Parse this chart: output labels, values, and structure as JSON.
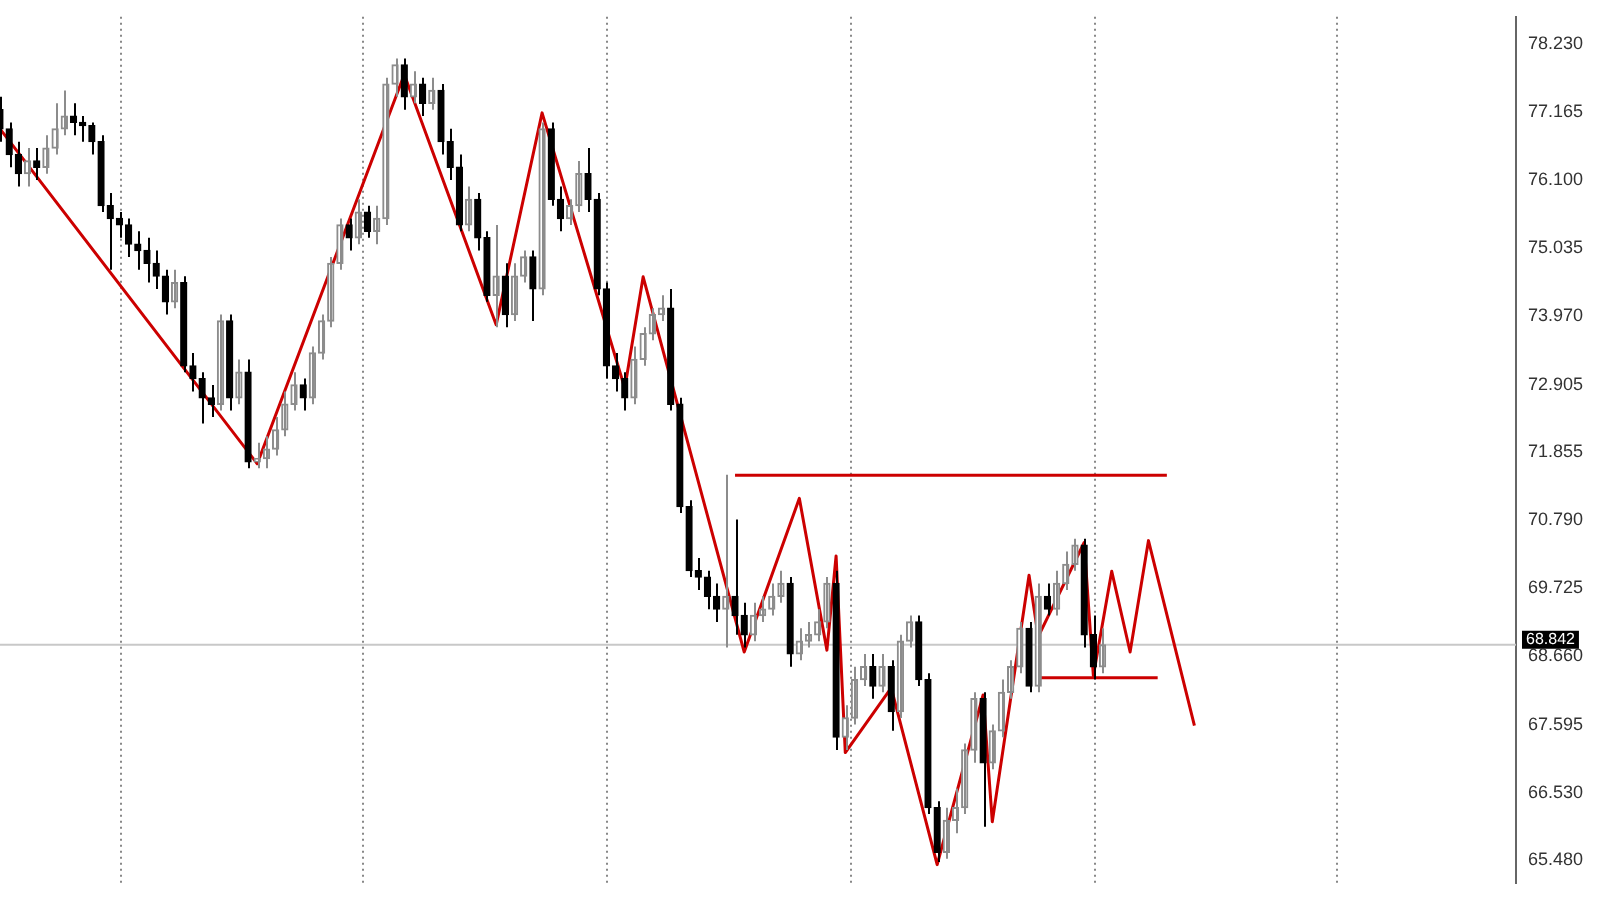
{
  "chart_data": {
    "type": "candlestick",
    "categories": [
      null,
      null,
      null,
      null,
      null,
      null,
      null,
      null,
      null,
      null,
      null,
      null,
      null,
      null,
      null,
      null,
      null,
      null,
      null,
      null,
      null,
      null,
      null,
      null,
      null,
      null,
      null,
      null,
      null,
      null,
      null,
      null,
      null,
      null,
      null,
      null,
      null,
      null,
      null,
      null,
      null,
      null,
      null,
      null,
      null,
      null,
      null,
      null,
      null,
      null,
      null,
      null,
      null,
      null,
      null,
      null,
      null,
      null,
      null,
      null,
      null,
      null,
      null,
      null,
      null,
      null,
      null,
      null,
      null,
      null,
      null,
      null,
      null,
      null,
      null,
      null,
      null,
      null,
      null,
      null,
      null,
      null,
      null,
      null,
      null,
      null,
      null,
      null,
      null,
      null,
      null,
      null,
      null,
      null,
      null,
      null,
      null,
      null,
      null,
      null,
      null,
      null,
      null,
      null,
      null,
      null,
      null,
      null,
      null,
      null,
      null,
      null,
      null,
      null,
      null,
      null,
      null,
      null,
      null,
      null,
      null,
      null,
      null,
      null,
      null,
      null,
      null,
      null,
      null,
      null,
      null,
      null,
      null,
      null,
      null,
      null,
      null,
      null,
      null,
      null,
      null,
      null,
      null,
      null,
      null,
      null,
      null,
      null,
      null,
      null,
      null,
      null,
      null,
      null,
      null,
      null,
      null,
      null,
      null,
      null,
      null,
      null,
      null,
      null,
      null,
      null
    ],
    "ohlc": [
      [
        77.2,
        77.4,
        76.7,
        76.9
      ],
      [
        76.9,
        77.0,
        76.3,
        76.5
      ],
      [
        76.5,
        76.7,
        76.0,
        76.2
      ],
      [
        76.2,
        76.6,
        76.0,
        76.4
      ],
      [
        76.4,
        76.6,
        76.1,
        76.3
      ],
      [
        76.3,
        76.8,
        76.2,
        76.6
      ],
      [
        76.6,
        77.3,
        76.5,
        76.9
      ],
      [
        76.9,
        77.5,
        76.8,
        77.1
      ],
      [
        77.1,
        77.3,
        76.8,
        77.0
      ],
      [
        77.0,
        77.1,
        76.7,
        76.95
      ],
      [
        76.95,
        77.0,
        76.5,
        76.7
      ],
      [
        76.7,
        76.8,
        75.6,
        75.7
      ],
      [
        75.7,
        75.9,
        74.7,
        75.5
      ],
      [
        75.5,
        75.6,
        75.2,
        75.4
      ],
      [
        75.4,
        75.5,
        74.9,
        75.1
      ],
      [
        75.1,
        75.3,
        74.7,
        75.0
      ],
      [
        75.0,
        75.2,
        74.5,
        74.8
      ],
      [
        74.8,
        75.0,
        74.4,
        74.6
      ],
      [
        74.6,
        74.7,
        74.0,
        74.2
      ],
      [
        74.2,
        74.7,
        74.1,
        74.5
      ],
      [
        74.5,
        74.6,
        73.1,
        73.2
      ],
      [
        73.2,
        73.4,
        72.8,
        73.0
      ],
      [
        73.0,
        73.1,
        72.3,
        72.7
      ],
      [
        72.7,
        72.9,
        72.4,
        72.6
      ],
      [
        72.6,
        74.0,
        72.5,
        73.9
      ],
      [
        73.9,
        74.0,
        72.5,
        72.7
      ],
      [
        72.7,
        73.3,
        72.6,
        73.1
      ],
      [
        73.1,
        73.3,
        71.6,
        71.7
      ],
      [
        71.7,
        72.0,
        71.6,
        71.75
      ],
      [
        71.75,
        72.1,
        71.6,
        71.9
      ],
      [
        71.9,
        72.4,
        71.8,
        72.2
      ],
      [
        72.2,
        72.8,
        72.1,
        72.6
      ],
      [
        72.6,
        73.1,
        72.5,
        72.9
      ],
      [
        72.9,
        73.0,
        72.5,
        72.7
      ],
      [
        72.7,
        73.5,
        72.6,
        73.4
      ],
      [
        73.4,
        74.0,
        73.3,
        73.9
      ],
      [
        73.9,
        74.9,
        73.8,
        74.8
      ],
      [
        74.8,
        75.5,
        74.7,
        75.4
      ],
      [
        75.4,
        75.5,
        75.0,
        75.2
      ],
      [
        75.2,
        75.8,
        75.1,
        75.6
      ],
      [
        75.6,
        75.7,
        75.2,
        75.3
      ],
      [
        75.3,
        75.7,
        75.1,
        75.5
      ],
      [
        75.5,
        77.7,
        75.4,
        77.6
      ],
      [
        77.6,
        78.0,
        77.4,
        77.9
      ],
      [
        77.9,
        78.0,
        77.2,
        77.4
      ],
      [
        77.4,
        77.8,
        77.3,
        77.6
      ],
      [
        77.6,
        77.7,
        77.1,
        77.3
      ],
      [
        77.3,
        77.7,
        77.2,
        77.5
      ],
      [
        77.5,
        77.6,
        76.5,
        76.7
      ],
      [
        76.7,
        76.9,
        76.1,
        76.3
      ],
      [
        76.3,
        76.5,
        75.3,
        75.4
      ],
      [
        75.4,
        76.0,
        75.3,
        75.8
      ],
      [
        75.8,
        75.9,
        75.0,
        75.2
      ],
      [
        75.2,
        75.3,
        74.2,
        74.3
      ],
      [
        74.3,
        75.4,
        73.8,
        74.6
      ],
      [
        74.6,
        74.8,
        73.8,
        74.0
      ],
      [
        74.0,
        74.8,
        73.9,
        74.6
      ],
      [
        74.6,
        75.0,
        74.5,
        74.9
      ],
      [
        74.9,
        75.0,
        73.9,
        74.4
      ],
      [
        74.4,
        77.0,
        74.3,
        76.9
      ],
      [
        76.9,
        77.0,
        75.7,
        75.8
      ],
      [
        75.8,
        76.0,
        75.3,
        75.5
      ],
      [
        75.5,
        75.8,
        75.4,
        75.7
      ],
      [
        75.7,
        76.4,
        75.6,
        76.2
      ],
      [
        76.2,
        76.6,
        75.6,
        75.8
      ],
      [
        75.8,
        75.9,
        74.3,
        74.4
      ],
      [
        74.4,
        74.5,
        73.0,
        73.2
      ],
      [
        73.2,
        73.4,
        72.8,
        73.0
      ],
      [
        73.0,
        73.1,
        72.5,
        72.7
      ],
      [
        72.7,
        73.5,
        72.6,
        73.3
      ],
      [
        73.3,
        73.8,
        73.2,
        73.7
      ],
      [
        73.7,
        74.1,
        73.6,
        74.0
      ],
      [
        74.0,
        74.3,
        73.9,
        74.1
      ],
      [
        74.1,
        74.4,
        72.5,
        72.6
      ],
      [
        72.6,
        72.7,
        70.9,
        71.0
      ],
      [
        71.0,
        71.1,
        69.9,
        70.0
      ],
      [
        70.0,
        70.2,
        69.7,
        69.9
      ],
      [
        69.9,
        70.0,
        69.4,
        69.6
      ],
      [
        69.6,
        69.8,
        69.2,
        69.4
      ],
      [
        69.4,
        71.5,
        68.8,
        69.6
      ],
      [
        69.6,
        70.8,
        69.0,
        69.3
      ],
      [
        69.3,
        69.5,
        68.8,
        69.0
      ],
      [
        69.0,
        69.5,
        68.9,
        69.3
      ],
      [
        69.3,
        69.6,
        69.2,
        69.4
      ],
      [
        69.4,
        69.8,
        69.3,
        69.6
      ],
      [
        69.6,
        70.0,
        69.5,
        69.8
      ],
      [
        69.8,
        69.9,
        68.5,
        68.7
      ],
      [
        68.7,
        69.1,
        68.6,
        68.9
      ],
      [
        68.9,
        69.2,
        68.8,
        69.0
      ],
      [
        69.0,
        69.4,
        68.9,
        69.2
      ],
      [
        69.2,
        69.9,
        69.1,
        69.8
      ],
      [
        69.8,
        70.0,
        67.2,
        67.4
      ],
      [
        67.4,
        67.9,
        67.2,
        67.7
      ],
      [
        67.7,
        68.5,
        67.6,
        68.3
      ],
      [
        68.3,
        68.7,
        68.2,
        68.5
      ],
      [
        68.5,
        68.7,
        68.0,
        68.2
      ],
      [
        68.2,
        68.7,
        68.1,
        68.5
      ],
      [
        68.5,
        68.6,
        67.5,
        67.8
      ],
      [
        67.8,
        69.0,
        67.7,
        68.9
      ],
      [
        68.9,
        69.3,
        68.8,
        69.2
      ],
      [
        69.2,
        69.3,
        68.2,
        68.3
      ],
      [
        68.3,
        68.4,
        66.2,
        66.3
      ],
      [
        66.3,
        66.4,
        65.45,
        65.6
      ],
      [
        65.6,
        66.3,
        65.5,
        66.1
      ],
      [
        66.1,
        66.6,
        65.9,
        66.3
      ],
      [
        66.3,
        67.3,
        66.2,
        67.2
      ],
      [
        67.2,
        68.1,
        67.0,
        68.0
      ],
      [
        68.0,
        68.1,
        66.0,
        67.0
      ],
      [
        67.0,
        67.6,
        66.9,
        67.5
      ],
      [
        67.5,
        68.3,
        67.4,
        68.1
      ],
      [
        68.1,
        68.6,
        68.0,
        68.5
      ],
      [
        68.5,
        69.2,
        68.4,
        69.1
      ],
      [
        69.1,
        69.2,
        68.1,
        68.2
      ],
      [
        68.2,
        69.8,
        68.1,
        69.6
      ],
      [
        69.6,
        69.8,
        69.3,
        69.4
      ],
      [
        69.4,
        70.0,
        69.3,
        69.8
      ],
      [
        69.8,
        70.3,
        69.7,
        70.1
      ],
      [
        70.1,
        70.5,
        70.0,
        70.4
      ],
      [
        70.4,
        70.5,
        68.8,
        69.0
      ],
      [
        69.0,
        69.3,
        68.3,
        68.5
      ],
      [
        68.5,
        69.1,
        68.4,
        68.84
      ],
      null,
      null,
      null,
      null,
      null,
      null,
      null,
      null,
      null,
      null,
      null,
      null,
      null,
      null,
      null,
      null,
      null,
      null,
      null,
      null,
      null,
      null,
      null,
      null,
      null,
      null,
      null,
      null,
      null,
      null,
      null,
      null,
      null,
      null,
      null,
      null,
      null,
      null,
      null,
      null,
      null,
      null,
      null,
      null,
      null
    ],
    "series": [
      {
        "type": "line",
        "color": "#cc0000",
        "values": [
          76.9,
          null,
          null,
          null,
          null,
          null,
          null,
          null,
          null,
          null,
          null,
          null,
          null,
          null,
          null,
          null,
          null,
          null,
          null,
          null,
          null,
          null,
          null,
          null,
          null,
          null,
          null,
          null,
          71.67,
          null,
          null,
          null,
          null,
          null,
          null,
          null,
          null,
          null,
          null,
          null,
          null,
          null,
          null,
          null,
          77.75,
          null,
          null,
          null,
          null,
          null,
          null,
          null,
          null,
          null,
          73.84,
          null,
          null,
          null,
          null,
          77.15,
          null,
          null,
          null,
          null,
          null,
          null,
          null,
          null,
          72.85,
          null,
          74.59,
          null,
          null,
          null,
          null,
          null,
          null,
          null,
          null,
          null,
          null,
          68.73,
          null,
          null,
          null,
          null,
          null,
          71.13,
          null,
          null,
          68.76,
          70.23,
          67.16,
          null,
          null,
          null,
          null,
          68.17,
          null,
          null,
          null,
          null,
          65.41,
          null,
          null,
          null,
          null,
          68.06,
          66.08,
          null,
          null,
          null,
          69.93,
          68.97,
          null,
          null,
          null,
          null,
          70.44,
          68.36,
          null,
          69.99,
          null,
          68.73,
          null,
          70.47,
          null,
          null,
          null,
          null,
          67.58,
          null,
          null,
          null,
          null,
          null,
          null,
          null,
          null,
          null,
          null,
          null,
          null,
          null,
          null,
          null,
          null,
          null,
          null,
          null,
          null,
          null,
          null,
          null,
          null,
          null,
          null,
          null,
          null,
          null,
          null,
          null,
          null,
          null,
          null,
          null
        ]
      },
      {
        "type": "line",
        "color": "#cc0000",
        "values": [
          null,
          null,
          null,
          null,
          null,
          null,
          null,
          null,
          null,
          null,
          null,
          null,
          null,
          null,
          null,
          null,
          null,
          null,
          null,
          null,
          null,
          null,
          null,
          null,
          null,
          null,
          null,
          null,
          null,
          null,
          null,
          null,
          null,
          null,
          null,
          null,
          null,
          null,
          null,
          null,
          null,
          null,
          null,
          null,
          null,
          null,
          null,
          null,
          null,
          null,
          null,
          null,
          null,
          null,
          null,
          null,
          null,
          null,
          null,
          null,
          null,
          null,
          null,
          null,
          null,
          null,
          null,
          null,
          null,
          null,
          null,
          null,
          null,
          null,
          null,
          null,
          null,
          null,
          null,
          null,
          71.49,
          null,
          null,
          null,
          null,
          null,
          null,
          null,
          null,
          null,
          null,
          null,
          null,
          null,
          null,
          null,
          null,
          null,
          null,
          null,
          null,
          null,
          null,
          null,
          null,
          null,
          null,
          null,
          null,
          null,
          null,
          null,
          null,
          null,
          null,
          null,
          null,
          null,
          null,
          null,
          null,
          null,
          null,
          null,
          null,
          null,
          null,
          71.49,
          null,
          null,
          null,
          null,
          null,
          null,
          null,
          null,
          null,
          null,
          null,
          null,
          null,
          null,
          null,
          null,
          null,
          null,
          null,
          null,
          null,
          null,
          null,
          null,
          null,
          null,
          null,
          null,
          null,
          null,
          null,
          null,
          null,
          null,
          null,
          null,
          null,
          null
        ]
      },
      {
        "type": "line",
        "color": "#cc0000",
        "values": [
          null,
          null,
          null,
          null,
          null,
          null,
          null,
          null,
          null,
          null,
          null,
          null,
          null,
          null,
          null,
          null,
          null,
          null,
          null,
          null,
          null,
          null,
          null,
          null,
          null,
          null,
          null,
          null,
          null,
          null,
          null,
          null,
          null,
          null,
          null,
          null,
          null,
          null,
          null,
          null,
          null,
          null,
          null,
          null,
          null,
          null,
          null,
          null,
          null,
          null,
          null,
          null,
          null,
          null,
          null,
          null,
          null,
          null,
          null,
          null,
          null,
          null,
          null,
          null,
          null,
          null,
          null,
          null,
          null,
          null,
          null,
          null,
          null,
          null,
          null,
          null,
          null,
          null,
          null,
          null,
          null,
          null,
          null,
          null,
          null,
          null,
          null,
          null,
          null,
          null,
          null,
          null,
          null,
          null,
          null,
          null,
          null,
          null,
          null,
          null,
          null,
          null,
          null,
          null,
          null,
          null,
          null,
          null,
          null,
          null,
          null,
          null,
          null,
          68.33,
          null,
          null,
          null,
          null,
          null,
          null,
          null,
          null,
          null,
          null,
          null,
          null,
          68.33,
          null,
          null,
          null,
          null,
          null,
          null,
          null,
          null,
          null,
          null,
          null,
          null,
          null,
          null,
          null,
          null,
          null,
          null,
          null,
          null,
          null,
          null,
          null,
          null,
          null,
          null,
          null,
          null,
          null,
          null,
          null,
          null,
          null,
          null,
          null,
          null,
          null,
          null,
          null
        ]
      }
    ],
    "ref_lines": [
      {
        "axis": "y",
        "value": 68.842,
        "label": "68.842",
        "color": "#c8c8c8"
      }
    ],
    "ylim": [
      65.12,
      78.65
    ],
    "yticks": [
      {
        "value": 65.48,
        "label": "65.480"
      },
      {
        "value": 66.53,
        "label": "66.530"
      },
      {
        "value": 67.595,
        "label": "67.595"
      },
      {
        "value": 68.66,
        "label": "68.660"
      },
      {
        "value": 69.725,
        "label": "69.725"
      },
      {
        "value": 70.79,
        "label": "70.790"
      },
      {
        "value": 71.855,
        "label": "71.855"
      },
      {
        "value": 72.905,
        "label": "72.905"
      },
      {
        "value": 73.97,
        "label": "73.970"
      },
      {
        "value": 75.035,
        "label": "75.035"
      },
      {
        "value": 76.1,
        "label": "76.100"
      },
      {
        "value": 77.165,
        "label": "77.165"
      },
      {
        "value": 78.23,
        "label": "78.230"
      }
    ],
    "grid": "x",
    "tick_labels": "y",
    "legend": false
  }
}
